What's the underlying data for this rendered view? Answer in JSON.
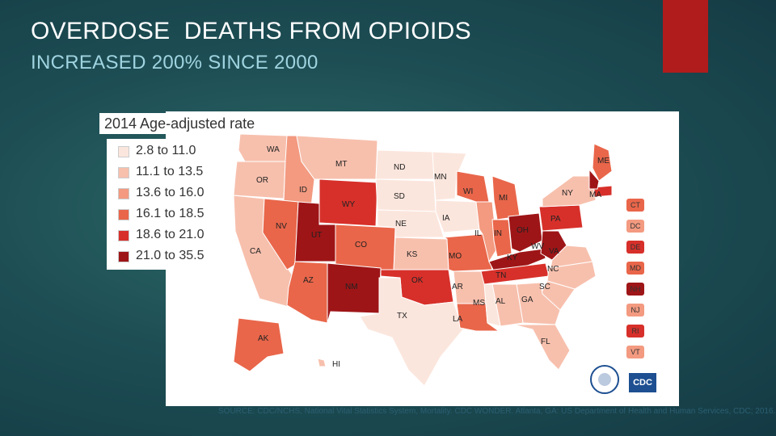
{
  "title": "OVERDOSE  DEATHS FROM OPIOIDS",
  "subtitle": "INCREASED 200% SINCE 2000",
  "map": {
    "legend_title": "2014 Age-adjusted rate",
    "legend": [
      {
        "label": "2.8 to 11.0",
        "color": "#fbe6dd"
      },
      {
        "label": "11.1 to 13.5",
        "color": "#f7c0ad"
      },
      {
        "label": "13.6 to 16.0",
        "color": "#f39a80"
      },
      {
        "label": "16.1 to 18.5",
        "color": "#e9664a"
      },
      {
        "label": "18.6 to 21.0",
        "color": "#d7302a"
      },
      {
        "label": "21.0 to 35.5",
        "color": "#9e1517"
      }
    ],
    "states": {
      "WA": "WA",
      "OR": "OR",
      "MT": "MT",
      "ID": "ID",
      "ND": "ND",
      "MN": "MN",
      "SD": "SD",
      "WY": "WY",
      "WI": "WI",
      "MI": "MI",
      "NY": "NY",
      "ME": "ME",
      "MA": "MA",
      "NE": "NE",
      "IA": "IA",
      "NV": "NV",
      "UT": "UT",
      "CO": "CO",
      "IL": "IL",
      "IN": "IN",
      "OH": "OH",
      "PA": "PA",
      "CA": "CA",
      "KS": "KS",
      "MO": "MO",
      "KY": "KY",
      "WV": "WV",
      "VA": "VA",
      "AZ": "AZ",
      "NM": "NM",
      "OK": "OK",
      "AR": "AR",
      "TN": "TN",
      "NC": "NC",
      "SC": "SC",
      "MS": "MS",
      "AL": "AL",
      "GA": "GA",
      "TX": "TX",
      "LA": "LA",
      "FL": "FL",
      "AK": "AK",
      "HI": "HI"
    },
    "side_states": [
      {
        "label": "CT",
        "color": "#e9664a"
      },
      {
        "label": "DC",
        "color": "#f39a80"
      },
      {
        "label": "DE",
        "color": "#d7302a"
      },
      {
        "label": "MD",
        "color": "#e9664a"
      },
      {
        "label": "NH",
        "color": "#9e1517"
      },
      {
        "label": "NJ",
        "color": "#f39a80"
      },
      {
        "label": "RI",
        "color": "#d7302a"
      },
      {
        "label": "VT",
        "color": "#f39a80"
      }
    ],
    "source": "SOURCE: CDC/NCHS, National Vital Statistics System, Mortality. CDC WONDER. Atlanta, GA: US Department of Health and Human Services, CDC; 2016.",
    "logo_text": "CDC"
  }
}
